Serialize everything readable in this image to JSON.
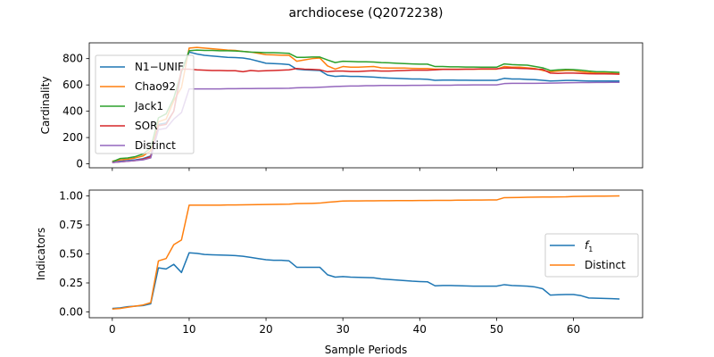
{
  "chart_data": {
    "title": "archdiocese (Q2072238)",
    "type": "line",
    "xlabel": "Sample Periods",
    "xlim": [
      -3,
      69
    ],
    "xticks": [
      0,
      10,
      20,
      30,
      40,
      50,
      60
    ],
    "panels": [
      {
        "ylabel": "Cardinality",
        "ylim": [
          -30,
          920
        ],
        "yticks": [
          0,
          200,
          400,
          600,
          800
        ],
        "legend_loc": "upper-left",
        "show_xticklabels": false,
        "series": [
          {
            "name": "N1−UNIF",
            "color": "#1f77b4",
            "x": [
              0,
              1,
              2,
              3,
              4,
              5,
              6,
              7,
              8,
              9,
              10,
              11,
              12,
              13,
              14,
              15,
              16,
              17,
              18,
              19,
              20,
              21,
              22,
              23,
              24,
              25,
              26,
              27,
              28,
              29,
              30,
              31,
              32,
              33,
              34,
              35,
              36,
              37,
              38,
              39,
              40,
              41,
              42,
              43,
              44,
              45,
              46,
              47,
              48,
              49,
              50,
              51,
              52,
              53,
              54,
              55,
              56,
              57,
              58,
              59,
              60,
              61,
              62,
              63,
              64,
              65,
              66
            ],
            "y": [
              15,
              20,
              25,
              30,
              40,
              60,
              300,
              310,
              400,
              700,
              850,
              835,
              825,
              820,
              815,
              810,
              808,
              805,
              795,
              780,
              765,
              762,
              760,
              755,
              720,
              715,
              712,
              710,
              675,
              665,
              668,
              665,
              665,
              662,
              660,
              655,
              652,
              650,
              648,
              645,
              645,
              643,
              635,
              637,
              637,
              636,
              636,
              635,
              635,
              635,
              635,
              650,
              645,
              645,
              642,
              640,
              635,
              630,
              632,
              634,
              634,
              632,
              630,
              630,
              630,
              630,
              630
            ]
          },
          {
            "name": "Chao92",
            "color": "#ff7f0e",
            "x": [
              0,
              1,
              2,
              3,
              4,
              5,
              6,
              7,
              8,
              9,
              10,
              11,
              12,
              13,
              14,
              15,
              16,
              17,
              18,
              19,
              20,
              21,
              22,
              23,
              24,
              25,
              26,
              27,
              28,
              29,
              30,
              31,
              32,
              33,
              34,
              35,
              36,
              37,
              38,
              39,
              40,
              41,
              42,
              43,
              44,
              45,
              46,
              47,
              48,
              49,
              50,
              51,
              52,
              53,
              54,
              55,
              56,
              57,
              58,
              59,
              60,
              61,
              62,
              63,
              64,
              65,
              66
            ],
            "y": [
              20,
              30,
              35,
              45,
              60,
              100,
              320,
              340,
              480,
              580,
              880,
              885,
              880,
              875,
              870,
              865,
              862,
              855,
              850,
              840,
              830,
              828,
              826,
              825,
              780,
              790,
              800,
              805,
              745,
              720,
              740,
              735,
              735,
              738,
              740,
              730,
              728,
              728,
              728,
              726,
              725,
              725,
              720,
              720,
              720,
              720,
              720,
              720,
              720,
              720,
              720,
              740,
              735,
              735,
              730,
              725,
              710,
              700,
              705,
              710,
              710,
              700,
              695,
              690,
              690,
              688,
              686
            ]
          },
          {
            "name": "Jack1",
            "color": "#2ca02c",
            "x": [
              0,
              1,
              2,
              3,
              4,
              5,
              6,
              7,
              8,
              9,
              10,
              11,
              12,
              13,
              14,
              15,
              16,
              17,
              18,
              19,
              20,
              21,
              22,
              23,
              24,
              25,
              26,
              27,
              28,
              29,
              30,
              31,
              32,
              33,
              34,
              35,
              36,
              37,
              38,
              39,
              40,
              41,
              42,
              43,
              44,
              45,
              46,
              47,
              48,
              49,
              50,
              51,
              52,
              53,
              54,
              55,
              56,
              57,
              58,
              59,
              60,
              61,
              62,
              63,
              64,
              65,
              66
            ],
            "y": [
              15,
              40,
              45,
              55,
              75,
              120,
              350,
              380,
              500,
              700,
              860,
              865,
              862,
              862,
              860,
              860,
              858,
              855,
              850,
              848,
              845,
              845,
              843,
              840,
              810,
              810,
              812,
              812,
              790,
              770,
              780,
              778,
              776,
              776,
              774,
              770,
              768,
              765,
              762,
              760,
              758,
              758,
              740,
              740,
              738,
              738,
              736,
              736,
              735,
              735,
              735,
              760,
              755,
              752,
              750,
              740,
              730,
              710,
              715,
              718,
              716,
              712,
              705,
              700,
              700,
              698,
              695
            ]
          },
          {
            "name": "SOR",
            "color": "#d62728",
            "x": [
              0,
              1,
              2,
              3,
              4,
              5,
              6,
              7,
              8,
              9,
              10,
              11,
              12,
              13,
              14,
              15,
              16,
              17,
              18,
              19,
              20,
              21,
              22,
              23,
              24,
              25,
              26,
              27,
              28,
              29,
              30,
              31,
              32,
              33,
              34,
              35,
              36,
              37,
              38,
              39,
              40,
              41,
              42,
              43,
              44,
              45,
              46,
              47,
              48,
              49,
              50,
              51,
              52,
              53,
              54,
              55,
              56,
              57,
              58,
              59,
              60,
              61,
              62,
              63,
              64,
              65,
              66
            ],
            "y": [
              10,
              15,
              20,
              25,
              35,
              55,
              290,
              300,
              400,
              720,
              720,
              715,
              712,
              710,
              710,
              708,
              708,
              700,
              710,
              705,
              708,
              710,
              712,
              715,
              725,
              720,
              718,
              715,
              700,
              705,
              705,
              702,
              702,
              705,
              708,
              705,
              705,
              708,
              710,
              712,
              712,
              712,
              715,
              718,
              718,
              718,
              720,
              720,
              722,
              722,
              722,
              728,
              728,
              726,
              724,
              720,
              718,
              690,
              688,
              690,
              690,
              688,
              685,
              684,
              684,
              683,
              682
            ]
          },
          {
            "name": "Distinct",
            "color": "#9467bd",
            "x": [
              0,
              1,
              2,
              3,
              4,
              5,
              6,
              7,
              8,
              9,
              10,
              11,
              12,
              13,
              14,
              15,
              16,
              17,
              18,
              19,
              20,
              21,
              22,
              23,
              24,
              25,
              26,
              27,
              28,
              29,
              30,
              31,
              32,
              33,
              34,
              35,
              36,
              37,
              38,
              39,
              40,
              41,
              42,
              43,
              44,
              45,
              46,
              47,
              48,
              49,
              50,
              51,
              52,
              53,
              54,
              55,
              56,
              57,
              58,
              59,
              60,
              61,
              62,
              63,
              64,
              65,
              66
            ],
            "y": [
              10,
              15,
              20,
              25,
              30,
              45,
              260,
              270,
              340,
              390,
              570,
              570,
              570,
              570,
              570,
              571,
              571,
              572,
              572,
              573,
              573,
              574,
              574,
              575,
              578,
              580,
              580,
              582,
              585,
              588,
              590,
              592,
              592,
              594,
              594,
              596,
              596,
              596,
              596,
              597,
              597,
              598,
              598,
              598,
              598,
              599,
              599,
              600,
              600,
              600,
              600,
              610,
              612,
              612,
              612,
              612,
              613,
              614,
              615,
              616,
              617,
              618,
              618,
              619,
              619,
              620,
              620
            ]
          }
        ]
      },
      {
        "ylabel": "Indicators",
        "ylim": [
          -0.05,
          1.05
        ],
        "yticks": [
          0.0,
          0.25,
          0.5,
          0.75,
          1.0
        ],
        "yticklabels": [
          "0.00",
          "0.25",
          "0.50",
          "0.75",
          "1.00"
        ],
        "legend_loc": "center-right",
        "show_xticklabels": true,
        "series": [
          {
            "name": "f",
            "name_sub": "1",
            "color": "#1f77b4",
            "x": [
              0,
              1,
              2,
              3,
              4,
              5,
              6,
              7,
              8,
              9,
              10,
              11,
              12,
              13,
              14,
              15,
              16,
              17,
              18,
              19,
              20,
              21,
              22,
              23,
              24,
              25,
              26,
              27,
              28,
              29,
              30,
              31,
              32,
              33,
              34,
              35,
              36,
              37,
              38,
              39,
              40,
              41,
              42,
              43,
              44,
              45,
              46,
              47,
              48,
              49,
              50,
              51,
              52,
              53,
              54,
              55,
              56,
              57,
              58,
              59,
              60,
              61,
              62,
              63,
              64,
              65,
              66
            ],
            "y": [
              0.03,
              0.035,
              0.045,
              0.05,
              0.055,
              0.07,
              0.38,
              0.37,
              0.41,
              0.34,
              0.51,
              0.505,
              0.495,
              0.492,
              0.49,
              0.488,
              0.486,
              0.48,
              0.47,
              0.46,
              0.45,
              0.445,
              0.445,
              0.44,
              0.385,
              0.385,
              0.385,
              0.385,
              0.32,
              0.3,
              0.305,
              0.3,
              0.298,
              0.296,
              0.294,
              0.285,
              0.28,
              0.275,
              0.27,
              0.265,
              0.262,
              0.26,
              0.225,
              0.228,
              0.228,
              0.226,
              0.224,
              0.222,
              0.222,
              0.222,
              0.222,
              0.235,
              0.228,
              0.225,
              0.222,
              0.215,
              0.2,
              0.145,
              0.148,
              0.15,
              0.15,
              0.14,
              0.12,
              0.118,
              0.116,
              0.114,
              0.112
            ]
          },
          {
            "name": "Distinct",
            "color": "#ff7f0e",
            "x": [
              0,
              1,
              2,
              3,
              4,
              5,
              6,
              7,
              8,
              9,
              10,
              11,
              12,
              13,
              14,
              15,
              16,
              17,
              18,
              19,
              20,
              21,
              22,
              23,
              24,
              25,
              26,
              27,
              28,
              29,
              30,
              31,
              32,
              33,
              34,
              35,
              36,
              37,
              38,
              39,
              40,
              41,
              42,
              43,
              44,
              45,
              46,
              47,
              48,
              49,
              50,
              51,
              52,
              53,
              54,
              55,
              56,
              57,
              58,
              59,
              60,
              61,
              62,
              63,
              64,
              65,
              66
            ],
            "y": [
              0.025,
              0.03,
              0.04,
              0.05,
              0.06,
              0.08,
              0.44,
              0.46,
              0.58,
              0.62,
              0.92,
              0.92,
              0.92,
              0.92,
              0.92,
              0.922,
              0.922,
              0.923,
              0.924,
              0.925,
              0.926,
              0.927,
              0.928,
              0.929,
              0.934,
              0.935,
              0.936,
              0.938,
              0.945,
              0.95,
              0.956,
              0.957,
              0.957,
              0.958,
              0.958,
              0.959,
              0.959,
              0.96,
              0.96,
              0.96,
              0.961,
              0.961,
              0.962,
              0.962,
              0.962,
              0.963,
              0.963,
              0.964,
              0.964,
              0.965,
              0.965,
              0.985,
              0.986,
              0.987,
              0.988,
              0.989,
              0.99,
              0.99,
              0.991,
              0.992,
              0.995,
              0.996,
              0.997,
              0.998,
              0.998,
              0.999,
              1.0
            ]
          }
        ]
      }
    ]
  }
}
